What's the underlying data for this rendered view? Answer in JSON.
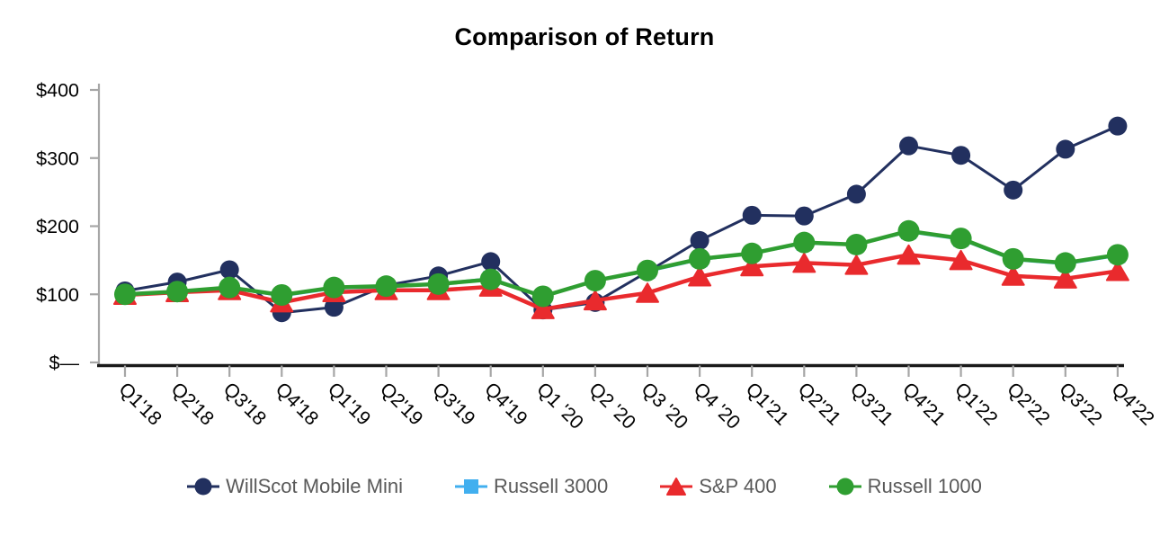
{
  "chart_data": {
    "type": "line",
    "title": "Comparison of Return",
    "x_axis": {
      "categories": [
        "Q1'18",
        "Q2'18",
        "Q3'18",
        "Q4'18",
        "Q1'19",
        "Q2'19",
        "Q3'19",
        "Q4'19",
        "Q1 '20",
        "Q2 '20",
        "Q3 '20",
        "Q4 '20",
        "Q1'21",
        "Q2'21",
        "Q3'21",
        "Q4'21",
        "Q1'22",
        "Q2'22",
        "Q3'22",
        "Q4'22"
      ]
    },
    "y_axis": {
      "tick_values": [
        0,
        100,
        200,
        300,
        400
      ],
      "tick_labels": [
        "$—",
        "$100",
        "$200",
        "$300",
        "$400"
      ],
      "range": [
        0,
        400
      ]
    },
    "series": [
      {
        "name": "WillScot Mobile Mini",
        "marker": "circle",
        "color": "#22305F",
        "values": [
          105,
          118,
          136,
          73,
          81,
          113,
          127,
          148,
          77,
          88,
          133,
          179,
          216,
          215,
          247,
          318,
          304,
          253,
          313,
          347
        ]
      },
      {
        "name": "Russell 3000",
        "marker": "square",
        "color": "#41AFEF",
        "values": [
          100,
          104,
          110,
          98,
          109,
          111,
          115,
          123,
          97,
          120,
          134,
          151,
          160,
          175,
          173,
          192,
          181,
          151,
          145,
          157
        ]
      },
      {
        "name": "S&P 400",
        "marker": "triangle",
        "color": "#E92A2D",
        "values": [
          99,
          103,
          106,
          88,
          103,
          106,
          106,
          111,
          78,
          91,
          102,
          126,
          141,
          146,
          143,
          158,
          150,
          127,
          123,
          134
        ]
      },
      {
        "name": "Russell 1000",
        "marker": "circle",
        "color": "#2F9E31",
        "values": [
          100,
          104,
          110,
          99,
          110,
          112,
          115,
          122,
          97,
          120,
          135,
          152,
          160,
          176,
          173,
          193,
          182,
          152,
          146,
          158
        ]
      }
    ],
    "legend_position": "bottom",
    "grid": "off",
    "axis_color": "#A6A6A6",
    "baseline_color": "#1A1A1A",
    "label_color": "#000000",
    "legend_text_color": "#595959"
  }
}
